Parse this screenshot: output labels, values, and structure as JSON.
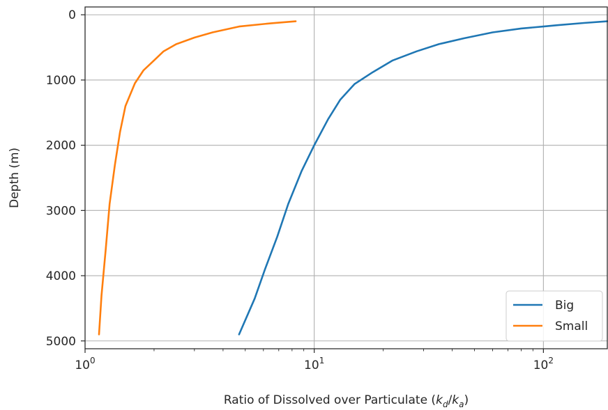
{
  "chart_data": {
    "type": "line",
    "title": "",
    "xlabel": "Ratio of Dissolved over Particulate (",
    "xlabel_math": {
      "k": "k",
      "d": "d",
      "a": "a"
    },
    "ylabel": "Depth (m)",
    "xscale": "log",
    "xlim": [
      1,
      190
    ],
    "ylim": [
      5120,
      -120
    ],
    "y_inverted": true,
    "grid": true,
    "legend_position": "lower-right",
    "xticks": [
      {
        "value": 1,
        "base": "10",
        "exp": "0"
      },
      {
        "value": 10,
        "base": "10",
        "exp": "1"
      },
      {
        "value": 100,
        "base": "10",
        "exp": "2"
      }
    ],
    "yticks": [
      0,
      1000,
      2000,
      3000,
      4000,
      5000
    ],
    "series": [
      {
        "name": "Big",
        "color": "#1f77b4",
        "points": [
          [
            190,
            100
          ],
          [
            150,
            125
          ],
          [
            115,
            160
          ],
          [
            100,
            180
          ],
          [
            80,
            210
          ],
          [
            60,
            270
          ],
          [
            45,
            360
          ],
          [
            35,
            450
          ],
          [
            28,
            560
          ],
          [
            22,
            700
          ],
          [
            18,
            880
          ],
          [
            15,
            1060
          ],
          [
            13,
            1300
          ],
          [
            11.5,
            1600
          ],
          [
            10,
            2000
          ],
          [
            8.8,
            2400
          ],
          [
            7.7,
            2900
          ],
          [
            6.9,
            3400
          ],
          [
            6.1,
            3900
          ],
          [
            5.5,
            4350
          ],
          [
            4.7,
            4900
          ]
        ]
      },
      {
        "name": "Small",
        "color": "#ff7f0e",
        "points": [
          [
            8.3,
            100
          ],
          [
            6.5,
            130
          ],
          [
            4.7,
            180
          ],
          [
            3.6,
            270
          ],
          [
            3.0,
            350
          ],
          [
            2.5,
            450
          ],
          [
            2.2,
            560
          ],
          [
            2.0,
            700
          ],
          [
            1.8,
            850
          ],
          [
            1.65,
            1050
          ],
          [
            1.5,
            1400
          ],
          [
            1.42,
            1800
          ],
          [
            1.35,
            2300
          ],
          [
            1.28,
            2900
          ],
          [
            1.23,
            3600
          ],
          [
            1.18,
            4300
          ],
          [
            1.15,
            4900
          ]
        ]
      }
    ]
  }
}
